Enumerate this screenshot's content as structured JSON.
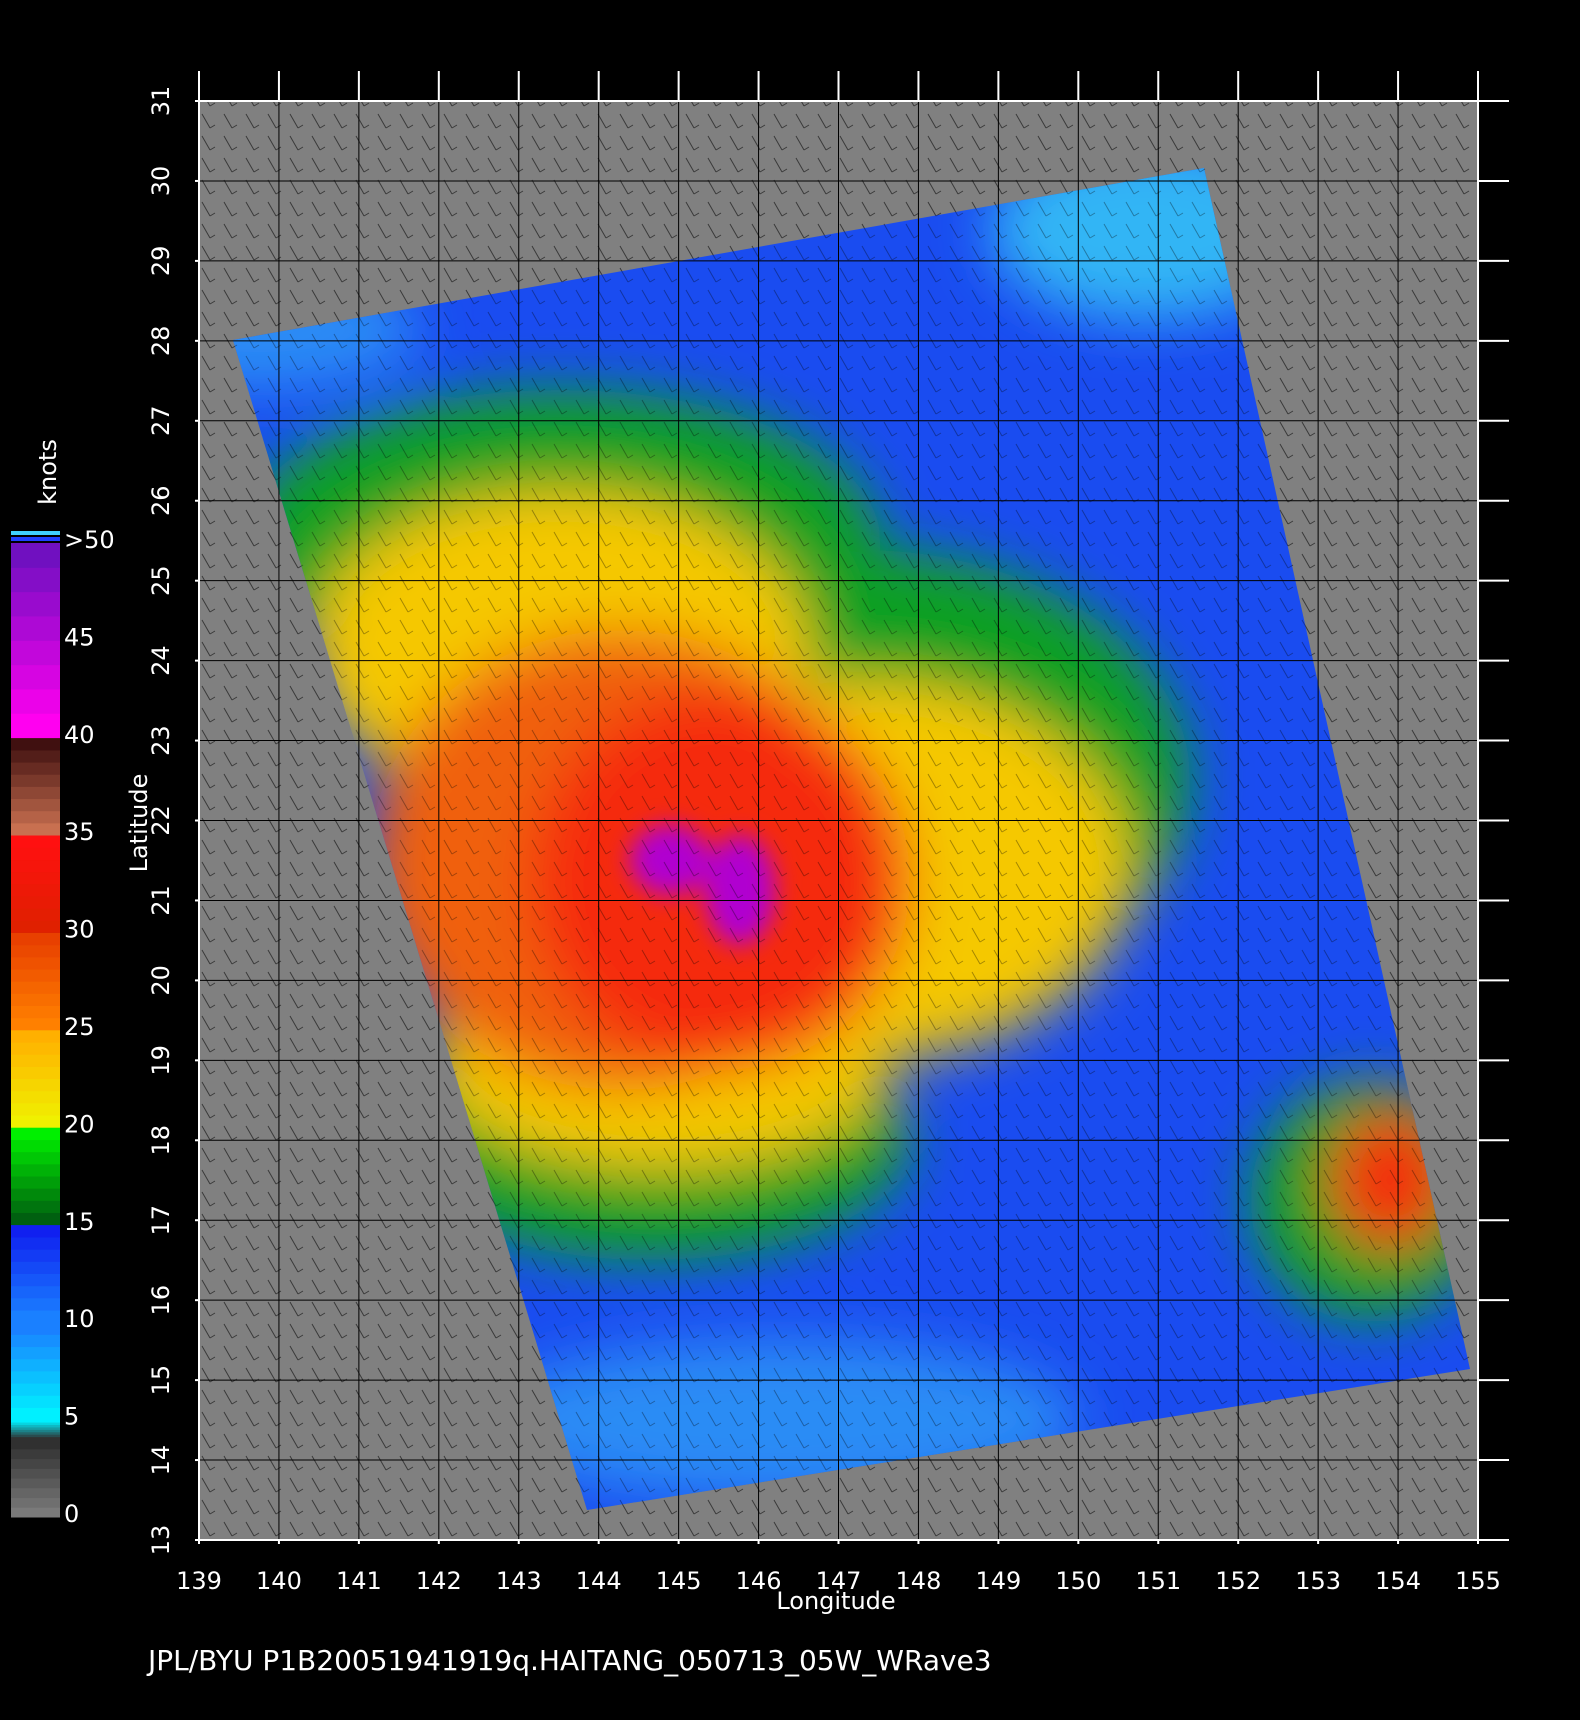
{
  "map": {
    "xlim": [
      139,
      155
    ],
    "ylim": [
      13,
      31
    ],
    "xticks": [
      139,
      140,
      141,
      142,
      143,
      144,
      145,
      146,
      147,
      148,
      149,
      150,
      151,
      152,
      153,
      154,
      155
    ],
    "yticks": [
      13,
      14,
      15,
      16,
      17,
      18,
      19,
      20,
      21,
      22,
      23,
      24,
      25,
      26,
      27,
      28,
      29,
      30,
      31
    ],
    "x_label": "Longitude",
    "y_label": "Latitude",
    "grid": true
  },
  "colorbar": {
    "unit": "knots",
    "lim": [
      0,
      50
    ],
    "ticks": [
      0,
      5,
      10,
      15,
      20,
      25,
      30,
      35,
      40,
      45,
      {
        "value": 50,
        "label": ">50"
      }
    ]
  },
  "footer": "JPL/BYU  P1B20051941919q.HAITANG_050713_05W_WRave3"
}
